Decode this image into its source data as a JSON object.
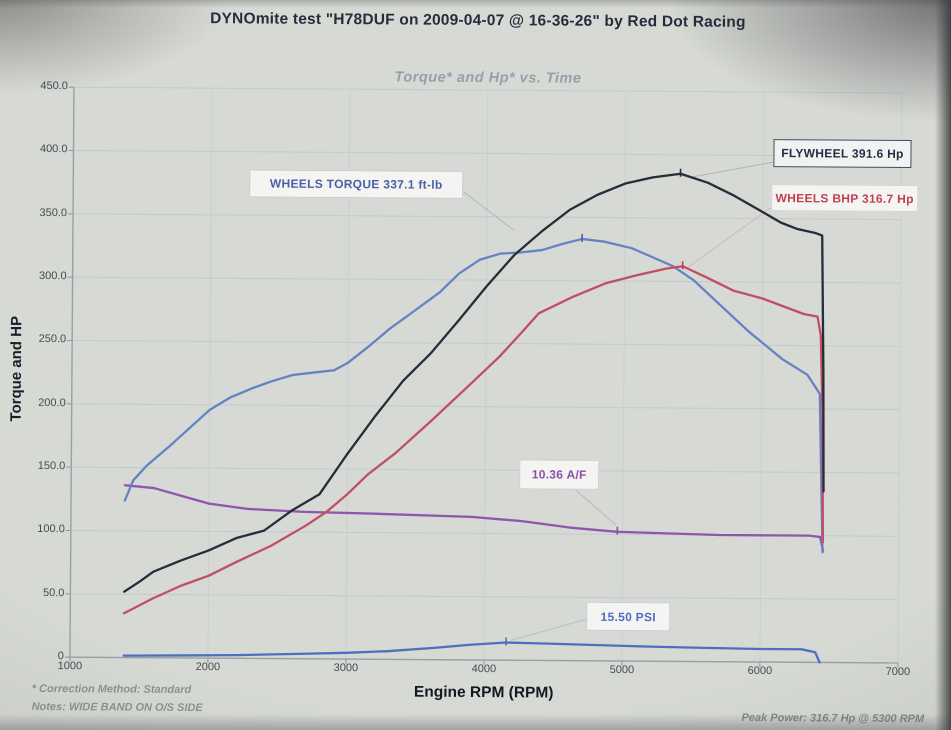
{
  "header": {
    "title": "DYNOmite test \"H78DUF on 2009-04-07 @ 16-36-26\" by Red Dot Racing"
  },
  "chart_data": {
    "type": "line",
    "title": "Torque* and Hp* vs. Time",
    "xlabel": "Engine RPM (RPM)",
    "ylabel": "Torque and HP",
    "xlim": [
      1000,
      7000
    ],
    "ylim": [
      0,
      450
    ],
    "xticks": [
      1000,
      2000,
      3000,
      4000,
      5000,
      6000,
      7000
    ],
    "yticks": [
      "450.0",
      "400.0",
      "350.0",
      "300.0",
      "250.0",
      "200.0",
      "150.0",
      "100.0",
      "50.0",
      "0"
    ],
    "grid": true,
    "legend_position": "inline-annotation-boxes",
    "series": [
      {
        "name": "A/F ratio trace",
        "color": "#9055ad",
        "points": [
          [
            1390,
            136
          ],
          [
            1600,
            134
          ],
          [
            1800,
            128
          ],
          [
            2000,
            122
          ],
          [
            2280,
            118
          ],
          [
            2690,
            116
          ],
          [
            3170,
            115
          ],
          [
            3900,
            113
          ],
          [
            4260,
            110
          ],
          [
            4620,
            105
          ],
          [
            4960,
            102
          ],
          [
            5350,
            101
          ],
          [
            5700,
            100
          ],
          [
            6100,
            100
          ],
          [
            6350,
            100
          ],
          [
            6430,
            99
          ],
          [
            6452,
            88
          ]
        ]
      },
      {
        "name": "Boost PSI trace",
        "color": "#4d6fc0",
        "points": [
          [
            1390,
            1.5
          ],
          [
            1800,
            2
          ],
          [
            2200,
            2.5
          ],
          [
            2700,
            4
          ],
          [
            3000,
            5
          ],
          [
            3300,
            6.5
          ],
          [
            3650,
            9.5
          ],
          [
            3900,
            12
          ],
          [
            4160,
            14
          ],
          [
            4400,
            13.5
          ],
          [
            4800,
            12.5
          ],
          [
            5200,
            11.5
          ],
          [
            5600,
            10.8
          ],
          [
            6000,
            10.3
          ],
          [
            6300,
            10.3
          ],
          [
            6400,
            8
          ],
          [
            6432,
            0
          ]
        ]
      },
      {
        "name": "WHEELS TORQUE (ft-lb)",
        "color": "#6682c4",
        "points": [
          [
            1390,
            124
          ],
          [
            1450,
            140
          ],
          [
            1550,
            152
          ],
          [
            1700,
            166
          ],
          [
            1850,
            181
          ],
          [
            2000,
            196
          ],
          [
            2150,
            206
          ],
          [
            2300,
            213
          ],
          [
            2450,
            219
          ],
          [
            2600,
            224
          ],
          [
            2750,
            226
          ],
          [
            2900,
            228
          ],
          [
            3000,
            234
          ],
          [
            3150,
            247
          ],
          [
            3300,
            261
          ],
          [
            3450,
            273
          ],
          [
            3660,
            290
          ],
          [
            3800,
            305
          ],
          [
            3950,
            316
          ],
          [
            4100,
            321
          ],
          [
            4250,
            322
          ],
          [
            4400,
            324
          ],
          [
            4550,
            329
          ],
          [
            4690,
            333
          ],
          [
            4850,
            331
          ],
          [
            5050,
            326
          ],
          [
            5200,
            319
          ],
          [
            5350,
            312
          ],
          [
            5500,
            301
          ],
          [
            5670,
            284
          ],
          [
            5900,
            261
          ],
          [
            6150,
            239
          ],
          [
            6330,
            227
          ],
          [
            6420,
            212
          ],
          [
            6448,
            87
          ]
        ]
      },
      {
        "name": "WHEELS BHP (Hp)",
        "color": "#c04f63",
        "points": [
          [
            1390,
            35
          ],
          [
            1600,
            47
          ],
          [
            1800,
            57
          ],
          [
            2000,
            65
          ],
          [
            2200,
            76
          ],
          [
            2450,
            89
          ],
          [
            2700,
            105
          ],
          [
            2850,
            116
          ],
          [
            3000,
            130
          ],
          [
            3150,
            146
          ],
          [
            3350,
            163
          ],
          [
            3600,
            188
          ],
          [
            3900,
            219
          ],
          [
            4100,
            240
          ],
          [
            4250,
            258
          ],
          [
            4380,
            274
          ],
          [
            4620,
            287
          ],
          [
            4860,
            298
          ],
          [
            5100,
            305
          ],
          [
            5300,
            310
          ],
          [
            5420,
            312
          ],
          [
            5600,
            303
          ],
          [
            5790,
            293
          ],
          [
            6000,
            287
          ],
          [
            6150,
            281
          ],
          [
            6300,
            275
          ],
          [
            6400,
            273
          ],
          [
            6425,
            258
          ],
          [
            6440,
            200
          ],
          [
            6450,
            95
          ]
        ]
      },
      {
        "name": "FLYWHEEL (Hp)",
        "color": "#272c3a",
        "points": [
          [
            1390,
            52
          ],
          [
            1500,
            60
          ],
          [
            1600,
            68
          ],
          [
            1800,
            77
          ],
          [
            2000,
            85
          ],
          [
            2200,
            95
          ],
          [
            2400,
            101
          ],
          [
            2600,
            117
          ],
          [
            2800,
            130
          ],
          [
            3000,
            162
          ],
          [
            3200,
            192
          ],
          [
            3400,
            220
          ],
          [
            3600,
            242
          ],
          [
            3800,
            268
          ],
          [
            4000,
            295
          ],
          [
            4200,
            320
          ],
          [
            4400,
            339
          ],
          [
            4600,
            356
          ],
          [
            4800,
            368
          ],
          [
            5000,
            377
          ],
          [
            5200,
            382
          ],
          [
            5400,
            385
          ],
          [
            5600,
            378
          ],
          [
            5790,
            368
          ],
          [
            6000,
            355
          ],
          [
            6130,
            347
          ],
          [
            6250,
            342
          ],
          [
            6380,
            339
          ],
          [
            6430,
            337
          ],
          [
            6445,
            230
          ],
          [
            6452,
            135
          ]
        ]
      }
    ],
    "annotations": [
      {
        "id": "flywheel",
        "text": "FLYWHEEL 391.6 Hp",
        "color": "#232c42",
        "anchor": [
          5400,
          385
        ]
      },
      {
        "id": "wheels-bhp",
        "text": "WHEELS BHP 316.7 Hp",
        "color": "#c23f51",
        "anchor": [
          5420,
          312
        ]
      },
      {
        "id": "wheels-torque",
        "text": "WHEELS TORQUE 337.1 ft-lb",
        "color": "#4a5fa5",
        "anchor": [
          4690,
          333
        ]
      },
      {
        "id": "air-fuel",
        "text": "10.36 A/F",
        "color": "#8a4fa8",
        "anchor": [
          4960,
          102
        ]
      },
      {
        "id": "boost-psi",
        "text": "15.50 PSI",
        "color": "#4f6ec0",
        "anchor": [
          4160,
          14
        ]
      }
    ]
  },
  "footer": {
    "correction": "* Correction Method: Standard",
    "notes": "Notes: WIDE BAND ON O/S SIDE",
    "peak_power": "Peak Power: 316.7 Hp @ 5300 RPM"
  }
}
